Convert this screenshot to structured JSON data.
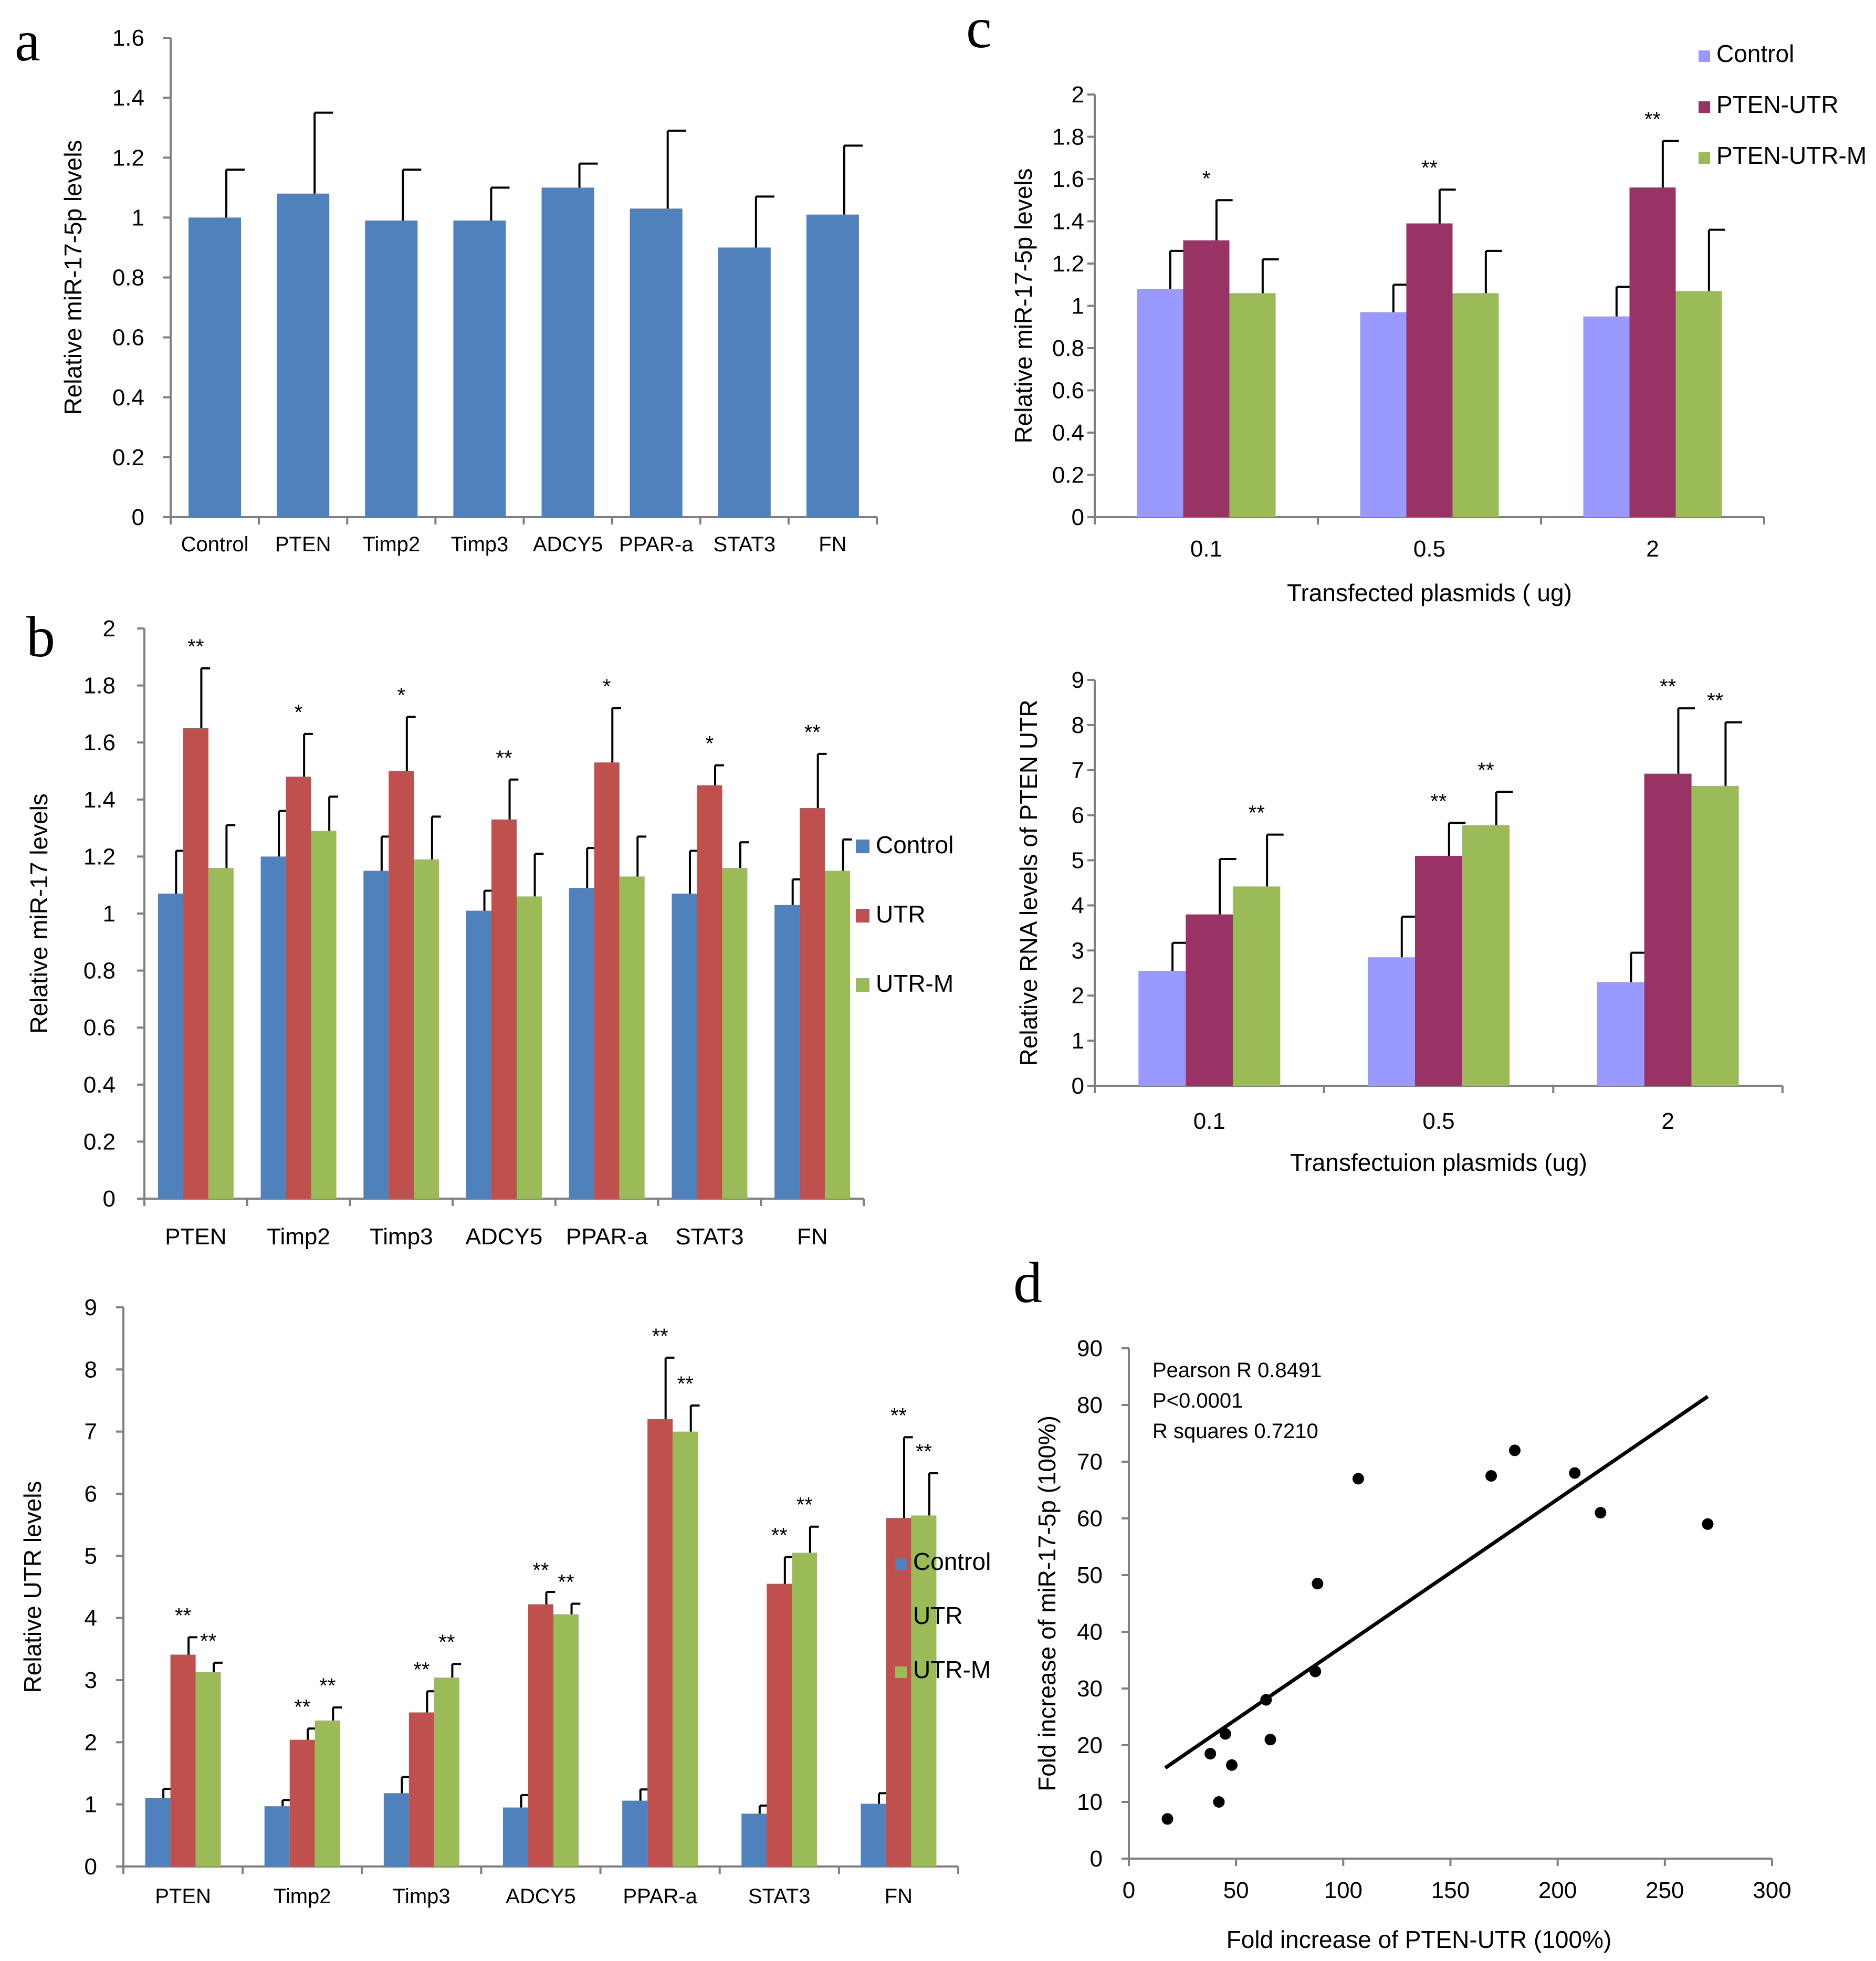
{
  "panel_labels": [
    "a",
    "b",
    "c",
    "d"
  ],
  "colors": {
    "blue": "#4F81BD",
    "red": "#C0504D",
    "green": "#9BBB59",
    "lavender": "#9999FF",
    "maroon": "#993366",
    "axis": "#808080",
    "black": "#000000"
  },
  "chart_data": [
    {
      "id": "a",
      "type": "bar",
      "title": "",
      "xlabel": "",
      "ylabel": "Relative miR-17-5p levels",
      "ylim": [
        0,
        1.6
      ],
      "yticks": [
        "0",
        "0.2",
        "0.4",
        "0.6",
        "0.8",
        "1",
        "1.2",
        "1.4",
        "1.6"
      ],
      "categories": [
        "Control",
        "PTEN",
        "Timp2",
        "Timp3",
        "ADCY5",
        "PPAR-a",
        "STAT3",
        "FN"
      ],
      "series": [
        {
          "name": "",
          "color": "#4F81BD",
          "values": [
            1.0,
            1.08,
            0.99,
            0.99,
            1.1,
            1.03,
            0.9,
            1.01
          ],
          "errors": [
            0.16,
            0.27,
            0.17,
            0.11,
            0.08,
            0.26,
            0.17,
            0.23
          ]
        }
      ],
      "significance": []
    },
    {
      "id": "b-top",
      "type": "bar",
      "title": "",
      "xlabel": "",
      "ylabel": "Relative miR-17 levels",
      "ylim": [
        0,
        2
      ],
      "yticks": [
        "0",
        "0.2",
        "0.4",
        "0.6",
        "0.8",
        "1",
        "1.2",
        "1.4",
        "1.6",
        "1.8",
        "2"
      ],
      "categories": [
        "PTEN",
        "Timp2",
        "Timp3",
        "ADCY5",
        "PPAR-a",
        "STAT3",
        "FN"
      ],
      "series": [
        {
          "name": "Control",
          "color": "#4F81BD",
          "values": [
            1.07,
            1.2,
            1.15,
            1.01,
            1.09,
            1.07,
            1.03
          ],
          "errors": [
            0.15,
            0.16,
            0.12,
            0.07,
            0.14,
            0.15,
            0.09
          ]
        },
        {
          "name": "UTR",
          "color": "#C0504D",
          "values": [
            1.65,
            1.48,
            1.5,
            1.33,
            1.53,
            1.45,
            1.37
          ],
          "errors": [
            0.21,
            0.15,
            0.19,
            0.14,
            0.19,
            0.07,
            0.19
          ]
        },
        {
          "name": "UTR-M",
          "color": "#9BBB59",
          "values": [
            1.16,
            1.29,
            1.19,
            1.06,
            1.13,
            1.16,
            1.15
          ],
          "errors": [
            0.15,
            0.12,
            0.15,
            0.15,
            0.14,
            0.09,
            0.11
          ]
        }
      ],
      "significance": [
        {
          "category": 0,
          "series": 1,
          "label": "**"
        },
        {
          "category": 1,
          "series": 1,
          "label": "*"
        },
        {
          "category": 2,
          "series": 1,
          "label": "*"
        },
        {
          "category": 3,
          "series": 1,
          "label": "**"
        },
        {
          "category": 4,
          "series": 1,
          "label": "*"
        },
        {
          "category": 5,
          "series": 1,
          "label": "*"
        },
        {
          "category": 6,
          "series": 1,
          "label": "**"
        }
      ]
    },
    {
      "id": "b-bottom",
      "type": "bar",
      "title": "",
      "xlabel": "",
      "ylabel": "Relative UTR levels",
      "ylim": [
        0,
        9
      ],
      "yticks": [
        "0",
        "1",
        "2",
        "3",
        "4",
        "5",
        "6",
        "7",
        "8",
        "9"
      ],
      "categories": [
        "PTEN",
        "Timp2",
        "Timp3",
        "ADCY5",
        "PPAR-a",
        "STAT3",
        "FN"
      ],
      "series": [
        {
          "name": "Control",
          "color": "#4F81BD",
          "values": [
            1.1,
            0.97,
            1.18,
            0.95,
            1.06,
            0.85,
            1.01
          ],
          "errors": [
            0.15,
            0.1,
            0.26,
            0.2,
            0.18,
            0.13,
            0.17
          ]
        },
        {
          "name": "UTR",
          "color": "#C0504D",
          "values": [
            3.41,
            2.04,
            2.48,
            4.22,
            7.2,
            4.55,
            5.61
          ],
          "errors": [
            0.28,
            0.18,
            0.34,
            0.2,
            0.99,
            0.43,
            1.3
          ]
        },
        {
          "name": "UTR-M",
          "color": "#9BBB59",
          "values": [
            3.13,
            2.35,
            3.04,
            4.06,
            7.0,
            5.05,
            5.65
          ],
          "errors": [
            0.15,
            0.21,
            0.22,
            0.17,
            0.42,
            0.42,
            0.68
          ]
        }
      ],
      "significance": [
        {
          "category": 0,
          "series": 1,
          "label": "**"
        },
        {
          "category": 0,
          "series": 2,
          "label": "**"
        },
        {
          "category": 1,
          "series": 1,
          "label": "**"
        },
        {
          "category": 1,
          "series": 2,
          "label": "**"
        },
        {
          "category": 2,
          "series": 1,
          "label": "**"
        },
        {
          "category": 2,
          "series": 2,
          "label": "**"
        },
        {
          "category": 3,
          "series": 1,
          "label": "**"
        },
        {
          "category": 3,
          "series": 2,
          "label": "**"
        },
        {
          "category": 4,
          "series": 1,
          "label": "**"
        },
        {
          "category": 4,
          "series": 2,
          "label": "**"
        },
        {
          "category": 5,
          "series": 1,
          "label": "**"
        },
        {
          "category": 5,
          "series": 2,
          "label": "**"
        },
        {
          "category": 6,
          "series": 1,
          "label": "**"
        },
        {
          "category": 6,
          "series": 2,
          "label": "**"
        }
      ]
    },
    {
      "id": "c-top",
      "type": "bar",
      "title": "",
      "xlabel": "Transfected  plasmids  ( ug)",
      "ylabel": "Relative  miR-17-5p levels",
      "ylim": [
        0,
        2
      ],
      "yticks": [
        "0",
        "0.2",
        "0.4",
        "0.6",
        "0.8",
        "1",
        "1.2",
        "1.4",
        "1.6",
        "1.8",
        "2"
      ],
      "categories": [
        "0.1",
        "0.5",
        "2"
      ],
      "series": [
        {
          "name": "Control",
          "color": "#9999FF",
          "values": [
            1.08,
            0.97,
            0.95
          ],
          "errors": [
            0.18,
            0.13,
            0.14
          ]
        },
        {
          "name": "PTEN-UTR",
          "color": "#993366",
          "values": [
            1.31,
            1.39,
            1.56
          ],
          "errors": [
            0.19,
            0.16,
            0.22
          ]
        },
        {
          "name": "PTEN-UTR-M",
          "color": "#9BBB59",
          "values": [
            1.06,
            1.06,
            1.07
          ],
          "errors": [
            0.16,
            0.2,
            0.29
          ]
        }
      ],
      "significance": [
        {
          "category": 0,
          "series": 1,
          "label": "*"
        },
        {
          "category": 1,
          "series": 1,
          "label": "**"
        },
        {
          "category": 2,
          "series": 1,
          "label": "**"
        }
      ]
    },
    {
      "id": "c-bottom",
      "type": "bar",
      "title": "",
      "xlabel": "Transfectuion plasmids (ug)",
      "ylabel": "Relative RNA levels of PTEN UTR",
      "ylim": [
        0,
        9
      ],
      "yticks": [
        "0",
        "1",
        "2",
        "3",
        "4",
        "5",
        "6",
        "7",
        "8",
        "9"
      ],
      "categories": [
        "0.1",
        "0.5",
        "2"
      ],
      "series": [
        {
          "name": "Control",
          "color": "#9999FF",
          "values": [
            2.55,
            2.85,
            2.3
          ],
          "errors": [
            0.62,
            0.9,
            0.65
          ]
        },
        {
          "name": "PTEN-UTR",
          "color": "#993366",
          "values": [
            3.8,
            5.1,
            6.92
          ],
          "errors": [
            1.23,
            0.73,
            1.45
          ]
        },
        {
          "name": "PTEN-UTR-M",
          "color": "#9BBB59",
          "values": [
            4.42,
            5.78,
            6.65
          ],
          "errors": [
            1.15,
            0.74,
            1.41
          ]
        }
      ],
      "significance": [
        {
          "category": 0,
          "series": 2,
          "label": "**"
        },
        {
          "category": 1,
          "series": 1,
          "label": "**"
        },
        {
          "category": 1,
          "series": 2,
          "label": "**"
        },
        {
          "category": 2,
          "series": 1,
          "label": "**"
        },
        {
          "category": 2,
          "series": 2,
          "label": "**"
        }
      ]
    },
    {
      "id": "d",
      "type": "scatter",
      "title": "",
      "xlabel": "Fold increase of PTEN-UTR (100%)",
      "ylabel": "Fold increase of miR-17-5p (100%)",
      "xlim": [
        0,
        300
      ],
      "ylim": [
        0,
        90
      ],
      "xticks": [
        "0",
        "50",
        "100",
        "150",
        "200",
        "250",
        "300"
      ],
      "yticks": [
        "0",
        "10",
        "20",
        "30",
        "40",
        "50",
        "60",
        "70",
        "80",
        "90"
      ],
      "points": [
        {
          "x": 18,
          "y": 7
        },
        {
          "x": 38,
          "y": 18.5
        },
        {
          "x": 42,
          "y": 10
        },
        {
          "x": 45,
          "y": 22
        },
        {
          "x": 48,
          "y": 16.5
        },
        {
          "x": 64,
          "y": 28
        },
        {
          "x": 66,
          "y": 21
        },
        {
          "x": 87,
          "y": 33
        },
        {
          "x": 88,
          "y": 48.5
        },
        {
          "x": 107,
          "y": 67
        },
        {
          "x": 169,
          "y": 67.5
        },
        {
          "x": 180,
          "y": 72
        },
        {
          "x": 208,
          "y": 68
        },
        {
          "x": 220,
          "y": 61
        },
        {
          "x": 270,
          "y": 59
        }
      ],
      "trendline": {
        "x": [
          17,
          270
        ],
        "y": [
          16,
          81.5
        ]
      },
      "annotations": [
        "Pearson R 0.8491",
        "P<0.0001",
        "R squares  0.7210"
      ]
    }
  ]
}
